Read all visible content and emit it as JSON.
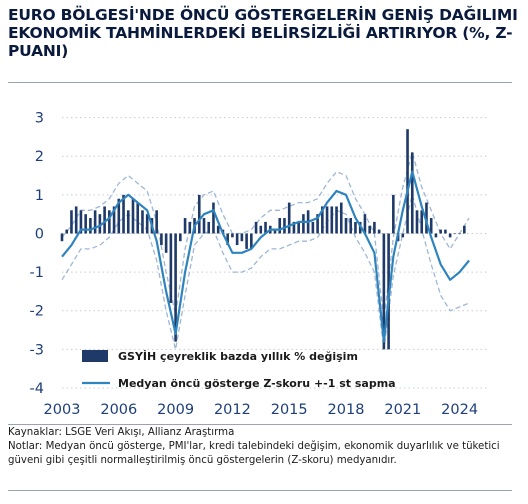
{
  "title": "EURO BÖLGESİ'NDE ÖNCÜ GÖSTERGELERİN GENİŞ DAĞILIMI EKONOMİK TAHMİNLERDEKİ BELİRSİZLİĞİ ARTIRIYOR (%, Z-PUANI)",
  "footer": {
    "source": "Kaynaklar: LSGE Veri Akışı, Allianz Araştırma",
    "notes": "Notlar: Medyan öncü gösterge, PMI'lar, kredi talebindeki değişim, ekonomik duyarlılık ve tüketici güveni gibi çeşitli normalleştirilmiş öncü göstergelerin (Z-skoru) medyanıdır."
  },
  "chart_data": {
    "type": "bar",
    "y_ticks": [
      "3",
      "2",
      "1",
      "0",
      "-1",
      "-2",
      "-3",
      "-4"
    ],
    "x_ticks": [
      "2003",
      "2006",
      "2009",
      "2012",
      "2015",
      "2018",
      "2021",
      "2024"
    ],
    "ylim": [
      -4,
      3.3
    ],
    "xlim": [
      2003,
      2025.5
    ],
    "grid": "horizontal dotted",
    "legend_position": "bottom-left inside plot",
    "colors": {
      "bars": "#1f3a68",
      "median_line": "#2f84be",
      "band": "#9fb7d6",
      "ticks": "#1e3f7a"
    },
    "series": [
      {
        "name": "GSYİH çeyreklik bazda yıllık % değişim",
        "kind": "bar",
        "x": [
          2003.0,
          2003.25,
          2003.5,
          2003.75,
          2004.0,
          2004.25,
          2004.5,
          2004.75,
          2005.0,
          2005.25,
          2005.5,
          2005.75,
          2006.0,
          2006.25,
          2006.5,
          2006.75,
          2007.0,
          2007.25,
          2007.5,
          2007.75,
          2008.0,
          2008.25,
          2008.5,
          2008.75,
          2009.0,
          2009.25,
          2009.5,
          2009.75,
          2010.0,
          2010.25,
          2010.5,
          2010.75,
          2011.0,
          2011.25,
          2011.5,
          2011.75,
          2012.0,
          2012.25,
          2012.5,
          2012.75,
          2013.0,
          2013.25,
          2013.5,
          2013.75,
          2014.0,
          2014.25,
          2014.5,
          2014.75,
          2015.0,
          2015.25,
          2015.5,
          2015.75,
          2016.0,
          2016.25,
          2016.5,
          2016.75,
          2017.0,
          2017.25,
          2017.5,
          2017.75,
          2018.0,
          2018.25,
          2018.5,
          2018.75,
          2019.0,
          2019.25,
          2019.5,
          2019.75,
          2020.0,
          2020.25,
          2020.5,
          2020.75,
          2021.0,
          2021.25,
          2021.5,
          2021.75,
          2022.0,
          2022.25,
          2022.5,
          2022.75,
          2023.0,
          2023.25,
          2023.5,
          2023.75,
          2024.0,
          2024.25
        ],
        "values": [
          -0.2,
          0.1,
          0.6,
          0.7,
          0.6,
          0.5,
          0.4,
          0.6,
          0.5,
          0.7,
          0.6,
          0.7,
          0.9,
          1.0,
          0.6,
          0.9,
          0.8,
          0.6,
          0.5,
          0.4,
          0.6,
          -0.3,
          -0.5,
          -1.8,
          -2.8,
          -0.2,
          0.4,
          0.3,
          0.4,
          1.0,
          0.4,
          0.3,
          0.8,
          0.2,
          0.1,
          -0.3,
          -0.1,
          -0.3,
          -0.2,
          -0.4,
          -0.4,
          0.3,
          0.2,
          0.3,
          0.2,
          0.1,
          0.4,
          0.4,
          0.8,
          0.3,
          0.3,
          0.5,
          0.6,
          0.3,
          0.5,
          0.7,
          0.7,
          0.7,
          0.7,
          0.8,
          0.4,
          0.4,
          0.3,
          0.3,
          0.5,
          0.2,
          0.3,
          0.1,
          -3.0,
          -3.0,
          1.0,
          -0.2,
          -0.1,
          2.7,
          2.1,
          0.6,
          0.6,
          0.8,
          0.4,
          -0.1,
          0.1,
          0.1,
          -0.1,
          0.0,
          0.0,
          0.2
        ]
      },
      {
        "name": "Medyan öncü gösterge Z-skoru +-1 st sapma",
        "kind": "line",
        "x": [
          2003.0,
          2003.5,
          2004.0,
          2004.5,
          2005.0,
          2005.5,
          2006.0,
          2006.5,
          2007.0,
          2007.5,
          2008.0,
          2008.5,
          2009.0,
          2009.5,
          2010.0,
          2010.5,
          2011.0,
          2011.5,
          2012.0,
          2012.5,
          2013.0,
          2013.5,
          2014.0,
          2014.5,
          2015.0,
          2015.5,
          2016.0,
          2016.5,
          2017.0,
          2017.5,
          2018.0,
          2018.5,
          2019.0,
          2019.5,
          2020.0,
          2020.5,
          2021.0,
          2021.5,
          2022.0,
          2022.5,
          2023.0,
          2023.5,
          2024.0,
          2024.5
        ],
        "values": [
          -0.6,
          -0.3,
          0.1,
          0.1,
          0.2,
          0.4,
          0.8,
          1.0,
          0.8,
          0.6,
          -0.2,
          -1.5,
          -2.6,
          -1.0,
          0.2,
          0.5,
          0.6,
          0.0,
          -0.5,
          -0.5,
          -0.4,
          -0.1,
          0.1,
          0.1,
          0.2,
          0.3,
          0.3,
          0.4,
          0.8,
          1.1,
          1.0,
          0.4,
          0.0,
          -0.5,
          -2.8,
          -0.6,
          0.6,
          1.6,
          0.7,
          -0.1,
          -0.8,
          -1.2,
          -1.0,
          -0.7
        ],
        "band_upper": [
          -0.1,
          0.2,
          0.6,
          0.6,
          0.7,
          0.9,
          1.3,
          1.5,
          1.3,
          1.1,
          0.3,
          -1.0,
          -2.1,
          -0.4,
          0.7,
          1.0,
          1.1,
          0.5,
          0.0,
          0.0,
          0.1,
          0.4,
          0.6,
          0.6,
          0.7,
          0.8,
          0.8,
          0.9,
          1.3,
          1.6,
          1.5,
          0.9,
          0.5,
          0.0,
          -2.3,
          -0.1,
          1.2,
          2.1,
          1.2,
          0.6,
          0.0,
          -0.4,
          0.0,
          0.4
        ],
        "band_lower": [
          -1.2,
          -0.8,
          -0.4,
          -0.4,
          -0.3,
          -0.1,
          0.3,
          0.5,
          0.3,
          0.1,
          -0.7,
          -2.0,
          -3.0,
          -1.6,
          -0.3,
          0.0,
          0.1,
          -0.5,
          -1.0,
          -1.0,
          -0.9,
          -0.6,
          -0.4,
          -0.4,
          -0.3,
          -0.2,
          -0.2,
          -0.1,
          0.3,
          0.6,
          0.5,
          -0.1,
          -0.5,
          -1.0,
          -3.0,
          -1.1,
          0.0,
          1.0,
          0.1,
          -0.8,
          -1.6,
          -2.0,
          -1.9,
          -1.8
        ]
      }
    ]
  }
}
